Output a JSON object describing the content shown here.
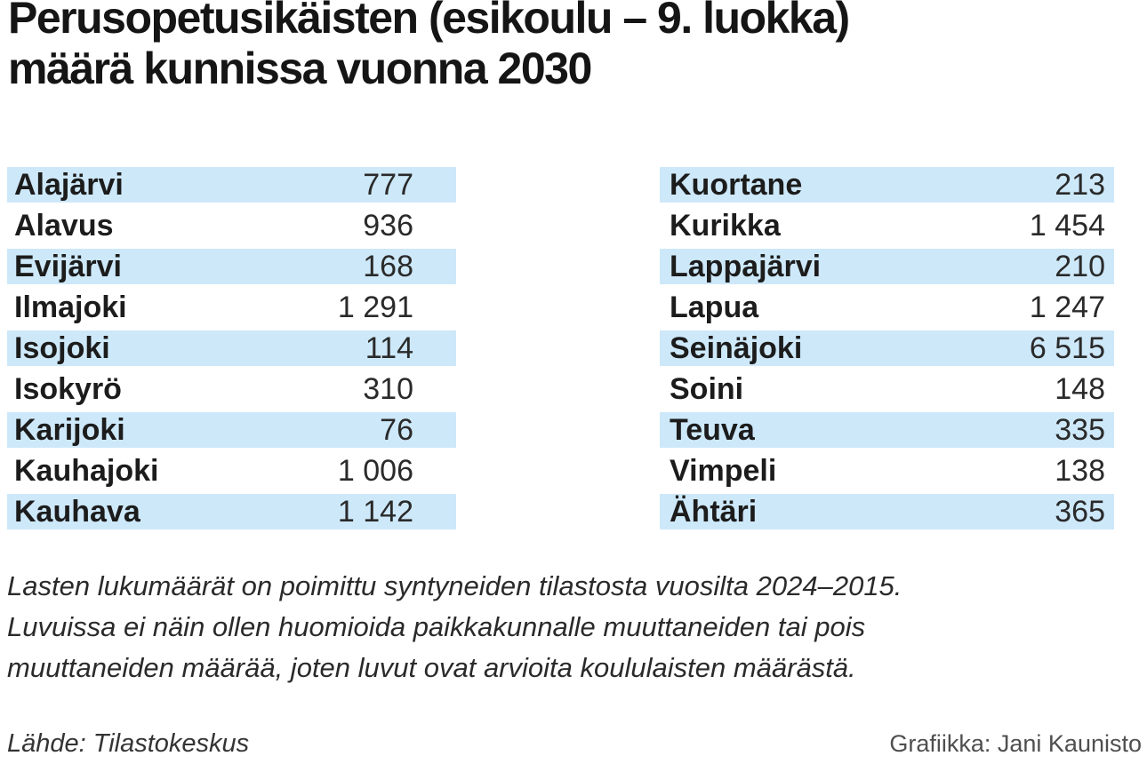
{
  "title": {
    "line1": "Perusopetusikäisten (esikoulu – 9. luokka)",
    "line2": "määrä kunnissa vuonna 2030"
  },
  "tables": {
    "left": {
      "rows": [
        {
          "name": "Alajärvi",
          "value": "777"
        },
        {
          "name": "Alavus",
          "value": "936"
        },
        {
          "name": "Evijärvi",
          "value": "168"
        },
        {
          "name": "Ilmajoki",
          "value": "1 291"
        },
        {
          "name": "Isojoki",
          "value": "114"
        },
        {
          "name": "Isokyrö",
          "value": "310"
        },
        {
          "name": "Karijoki",
          "value": "76"
        },
        {
          "name": "Kauhajoki",
          "value": "1 006"
        },
        {
          "name": "Kauhava",
          "value": "1 142"
        }
      ]
    },
    "right": {
      "rows": [
        {
          "name": "Kuortane",
          "value": "213"
        },
        {
          "name": "Kurikka",
          "value": "1 454"
        },
        {
          "name": "Lappajärvi",
          "value": "210"
        },
        {
          "name": "Lapua",
          "value": "1 247"
        },
        {
          "name": "Seinäjoki",
          "value": "6 515"
        },
        {
          "name": "Soini",
          "value": "148"
        },
        {
          "name": "Teuva",
          "value": "335"
        },
        {
          "name": "Vimpeli",
          "value": "138"
        },
        {
          "name": "Ähtäri",
          "value": "365"
        }
      ]
    }
  },
  "footnote": {
    "line1": "Lasten lukumäärät on poimittu syntyneiden tilastosta vuosilta 2024–2015.",
    "line2": "Luvuissa ei näin ollen huomioida paikkakunnalle muuttaneiden tai pois",
    "line3": "muuttaneiden määrää, joten luvut ovat arvioita koululaisten määrästä."
  },
  "credits": {
    "source": "Lähde: Tilastokeskus",
    "graphics": "Grafiikka: Jani Kaunisto"
  },
  "colors": {
    "row_highlight": "#cde8f9",
    "text": "#1c1c1c",
    "credit_gray": "#4f4f4f",
    "background": "#ffffff"
  },
  "chart_data": {
    "type": "table",
    "title": "Perusopetusikäisten (esikoulu – 9. luokka) määrä kunnissa vuonna 2030",
    "categories": [
      "Alajärvi",
      "Alavus",
      "Evijärvi",
      "Ilmajoki",
      "Isojoki",
      "Isokyrö",
      "Karijoki",
      "Kauhajoki",
      "Kauhava",
      "Kuortane",
      "Kurikka",
      "Lappajärvi",
      "Lapua",
      "Seinäjoki",
      "Soini",
      "Teuva",
      "Vimpeli",
      "Ähtäri"
    ],
    "values": [
      777,
      936,
      168,
      1291,
      114,
      310,
      76,
      1006,
      1142,
      213,
      1454,
      210,
      1247,
      6515,
      148,
      335,
      138,
      365
    ],
    "layout": "two-column table with alternating light-blue row highlights",
    "source": "Tilastokeskus",
    "note": "Lasten lukumäärät on poimittu syntyneiden tilastosta vuosilta 2024–2015. Luvuissa ei näin ollen huomioida paikkakunnalle muuttaneiden tai pois muuttaneiden määrää, joten luvut ovat arvioita koululaisten määrästä."
  }
}
